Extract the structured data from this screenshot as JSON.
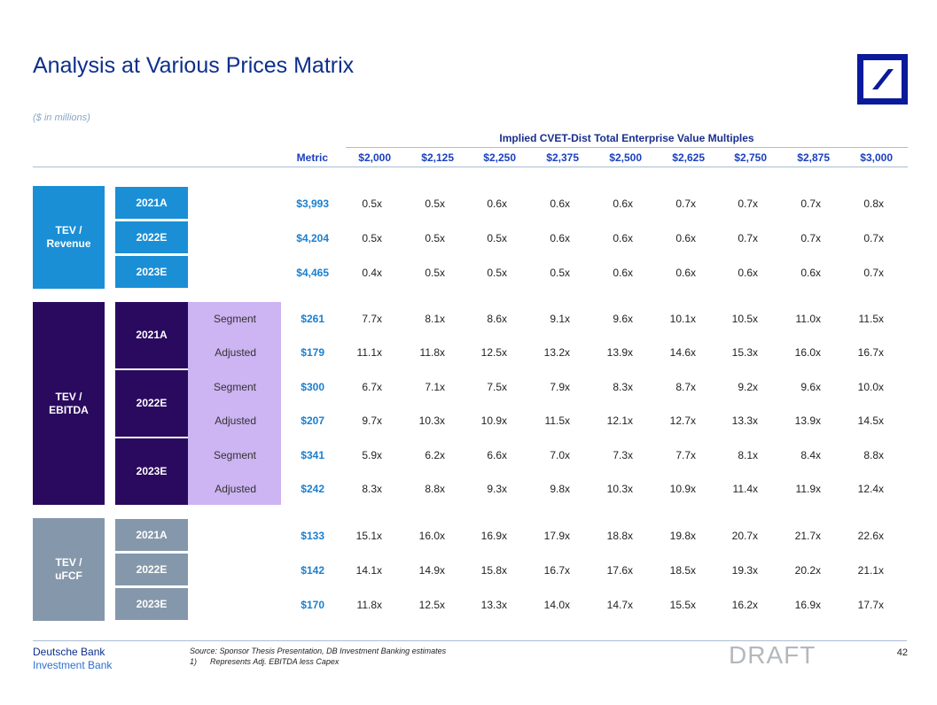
{
  "title": "Analysis at Various Prices Matrix",
  "subtitle": "($ in millions)",
  "header": {
    "group_title": "Implied CVET-Dist Total Enterprise Value Multiples",
    "metric_label": "Metric",
    "prices": [
      "$2,000",
      "$2,125",
      "$2,250",
      "$2,375",
      "$2,500",
      "$2,625",
      "$2,750",
      "$2,875",
      "$3,000"
    ]
  },
  "sections": {
    "revenue": {
      "label": "TEV / Revenue",
      "rows": [
        {
          "year": "2021A",
          "metric": "$3,993",
          "values": [
            "0.5x",
            "0.5x",
            "0.6x",
            "0.6x",
            "0.6x",
            "0.7x",
            "0.7x",
            "0.7x",
            "0.8x"
          ]
        },
        {
          "year": "2022E",
          "metric": "$4,204",
          "values": [
            "0.5x",
            "0.5x",
            "0.5x",
            "0.6x",
            "0.6x",
            "0.6x",
            "0.7x",
            "0.7x",
            "0.7x"
          ]
        },
        {
          "year": "2023E",
          "metric": "$4,465",
          "values": [
            "0.4x",
            "0.5x",
            "0.5x",
            "0.5x",
            "0.6x",
            "0.6x",
            "0.6x",
            "0.6x",
            "0.7x"
          ]
        }
      ]
    },
    "ebitda": {
      "label": "TEV / EBITDA",
      "years": [
        "2021A",
        "2022E",
        "2023E"
      ],
      "rows": [
        {
          "type": "Segment",
          "metric": "$261",
          "values": [
            "7.7x",
            "8.1x",
            "8.6x",
            "9.1x",
            "9.6x",
            "10.1x",
            "10.5x",
            "11.0x",
            "11.5x"
          ]
        },
        {
          "type": "Adjusted",
          "metric": "$179",
          "values": [
            "11.1x",
            "11.8x",
            "12.5x",
            "13.2x",
            "13.9x",
            "14.6x",
            "15.3x",
            "16.0x",
            "16.7x"
          ]
        },
        {
          "type": "Segment",
          "metric": "$300",
          "values": [
            "6.7x",
            "7.1x",
            "7.5x",
            "7.9x",
            "8.3x",
            "8.7x",
            "9.2x",
            "9.6x",
            "10.0x"
          ]
        },
        {
          "type": "Adjusted",
          "metric": "$207",
          "values": [
            "9.7x",
            "10.3x",
            "10.9x",
            "11.5x",
            "12.1x",
            "12.7x",
            "13.3x",
            "13.9x",
            "14.5x"
          ]
        },
        {
          "type": "Segment",
          "metric": "$341",
          "values": [
            "5.9x",
            "6.2x",
            "6.6x",
            "7.0x",
            "7.3x",
            "7.7x",
            "8.1x",
            "8.4x",
            "8.8x"
          ]
        },
        {
          "type": "Adjusted",
          "metric": "$242",
          "values": [
            "8.3x",
            "8.8x",
            "9.3x",
            "9.8x",
            "10.3x",
            "10.9x",
            "11.4x",
            "11.9x",
            "12.4x"
          ]
        }
      ]
    },
    "ufcf": {
      "label": "TEV / uFCF",
      "rows": [
        {
          "year": "2021A",
          "metric": "$133",
          "values": [
            "15.1x",
            "16.0x",
            "16.9x",
            "17.9x",
            "18.8x",
            "19.8x",
            "20.7x",
            "21.7x",
            "22.6x"
          ]
        },
        {
          "year": "2022E",
          "metric": "$142",
          "values": [
            "14.1x",
            "14.9x",
            "15.8x",
            "16.7x",
            "17.6x",
            "18.5x",
            "19.3x",
            "20.2x",
            "21.1x"
          ]
        },
        {
          "year": "2023E",
          "metric": "$170",
          "values": [
            "11.8x",
            "12.5x",
            "13.3x",
            "14.0x",
            "14.7x",
            "15.5x",
            "16.2x",
            "16.9x",
            "17.7x"
          ]
        }
      ]
    }
  },
  "footer": {
    "brand_line1": "Deutsche Bank",
    "brand_line2": "Investment Bank",
    "source": "Source: Sponsor Thesis Presentation, DB Investment Banking estimates",
    "footnote_num": "1)",
    "footnote_text": "Represents Adj. EBITDA less Capex",
    "draft": "DRAFT",
    "page": "42"
  },
  "colors": {
    "revenue": "#1a8fd6",
    "ebitda": "#2a0a5e",
    "ebitda_light": "#cdb4f2",
    "ufcf": "#8598ab",
    "accent": "#1a3fc1"
  }
}
